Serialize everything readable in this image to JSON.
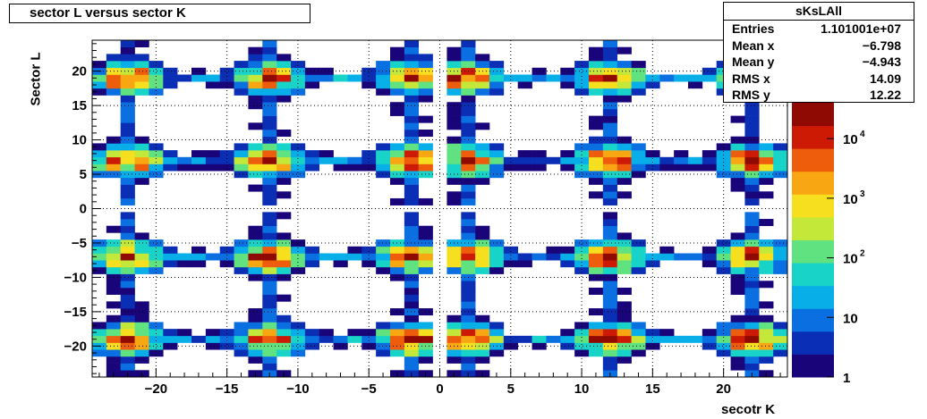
{
  "title": "sector L versus sector K",
  "stats": {
    "name": "sKsLAll",
    "rows": [
      {
        "label": "Entries",
        "value": "1.101001e+07"
      },
      {
        "label": "Mean x",
        "value": "−6.798"
      },
      {
        "label": "Mean y",
        "value": "−4.943"
      },
      {
        "label": "RMS x",
        "value": "14.09"
      },
      {
        "label": "RMS y",
        "value": "12.22"
      }
    ]
  },
  "chart_data": {
    "type": "heatmap",
    "title": "sector L versus sector K",
    "xlabel": "secotr K",
    "ylabel": "Sector L",
    "xlim": [
      -24.5,
      24.5
    ],
    "ylim": [
      -24.5,
      24.5
    ],
    "x_ticks": [
      -20,
      -15,
      -10,
      -5,
      0,
      5,
      10,
      15,
      20
    ],
    "y_ticks": [
      -20,
      -15,
      -10,
      -5,
      0,
      5,
      10,
      15,
      20
    ],
    "x_tick_labels": [
      "−20",
      "−15",
      "−10",
      "−5",
      "0",
      "5",
      "10",
      "15",
      "20"
    ],
    "y_tick_labels": [
      "−20",
      "−15",
      "−10",
      "−5",
      "0",
      "5",
      "10",
      "15",
      "20"
    ],
    "grid": true,
    "z_scale": "log",
    "z_range": [
      1,
      40000
    ],
    "colorbar_ticks": [
      {
        "value": 1,
        "base": "1",
        "exp": ""
      },
      {
        "value": 10,
        "base": "10",
        "exp": ""
      },
      {
        "value": 100,
        "base": "10",
        "exp": "2"
      },
      {
        "value": 1000,
        "base": "10",
        "exp": "3"
      },
      {
        "value": 10000,
        "base": "10",
        "exp": "4"
      }
    ],
    "colormap": [
      "#19047a",
      "#0a2fb5",
      "#0a6fe0",
      "#07aee8",
      "#18d4c8",
      "#5fe27f",
      "#c3e83a",
      "#f6df1e",
      "#f8a612",
      "#ee5d0b",
      "#cc1a05",
      "#8e0a03"
    ],
    "empty_row": 0,
    "empty_column": 0,
    "clusters_k": [
      -22,
      -12,
      -2,
      2,
      12,
      22
    ],
    "clusters_l": [
      -19,
      -7,
      7,
      19
    ]
  }
}
